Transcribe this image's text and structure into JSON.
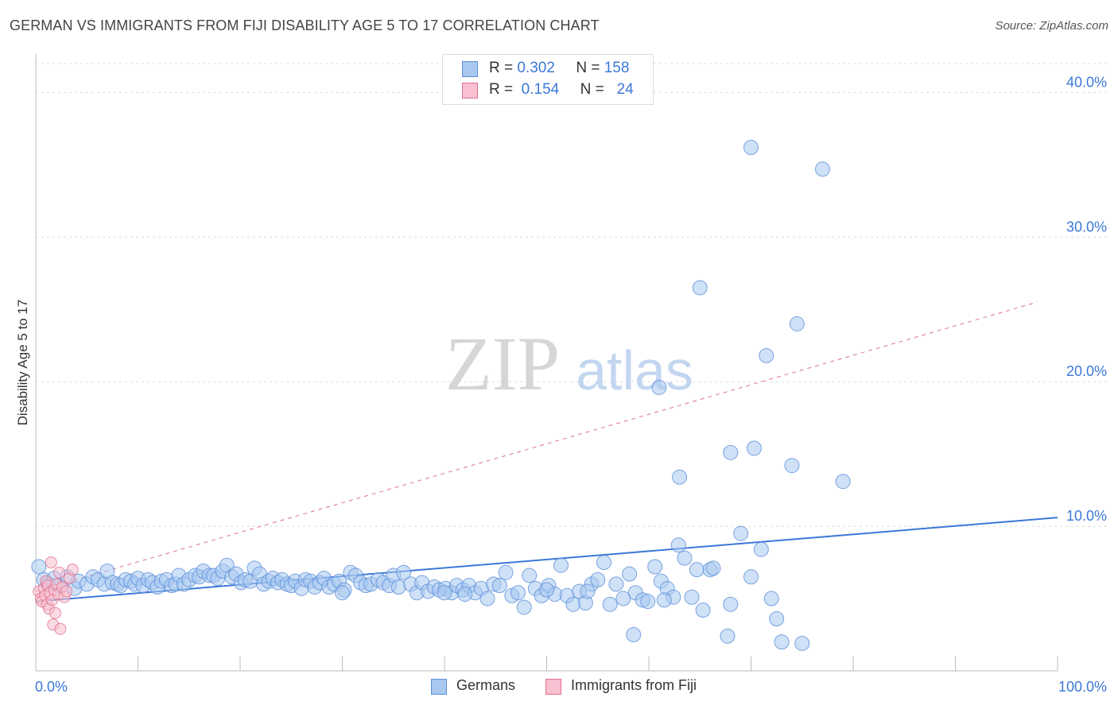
{
  "title": "GERMAN VS IMMIGRANTS FROM FIJI DISABILITY AGE 5 TO 17 CORRELATION CHART",
  "source": "Source: ZipAtlas.com",
  "watermark": {
    "zip": "ZIP",
    "atlas": "atlas"
  },
  "legend_top": [
    {
      "r_label": "R =",
      "r_value": "0.302",
      "n_label": "N =",
      "n_value": "158",
      "color": "#a8c8f0",
      "border": "#5b8fd9"
    },
    {
      "r_label": "R =",
      "r_value": "0.154",
      "n_label": "N =",
      "n_value": "24",
      "color": "#f8c0d0",
      "border": "#e0708f"
    }
  ],
  "legend_bottom": [
    {
      "label": "Germans",
      "color": "#a8c8f0",
      "border": "#5b8fd9"
    },
    {
      "label": "Immigrants from Fiji",
      "color": "#f8c0d0",
      "border": "#e0708f"
    }
  ],
  "chart_data": {
    "type": "scatter",
    "xlabel": "",
    "ylabel": "Disability Age 5 to 17",
    "xlim": [
      0,
      100
    ],
    "ylim": [
      0,
      42
    ],
    "x_tick_labels": [
      {
        "value": 0,
        "label": "0.0%"
      },
      {
        "value": 100,
        "label": "100.0%"
      }
    ],
    "y_tick_labels": [
      {
        "value": 10,
        "label": "10.0%"
      },
      {
        "value": 20,
        "label": "20.0%"
      },
      {
        "value": 30,
        "label": "30.0%"
      },
      {
        "value": 40,
        "label": "40.0%"
      }
    ],
    "grid": true,
    "series": [
      {
        "name": "Germans",
        "color": "#a8c8f0",
        "border": "#5b8fd9",
        "trend": {
          "x": [
            0,
            100
          ],
          "y": [
            4.8,
            10.6
          ],
          "style": "solid",
          "color": "#3b78d8"
        },
        "points": [
          [
            0.3,
            7.2
          ],
          [
            0.8,
            6.3
          ],
          [
            1.2,
            6.0
          ],
          [
            1.8,
            6.4
          ],
          [
            2.3,
            5.9
          ],
          [
            3.1,
            6.5
          ],
          [
            3.8,
            5.7
          ],
          [
            4.2,
            6.2
          ],
          [
            5.0,
            6.0
          ],
          [
            5.6,
            6.5
          ],
          [
            6.1,
            6.3
          ],
          [
            6.7,
            6.0
          ],
          [
            7.0,
            6.9
          ],
          [
            7.5,
            6.1
          ],
          [
            8.0,
            6.0
          ],
          [
            8.3,
            5.9
          ],
          [
            8.8,
            6.3
          ],
          [
            9.3,
            6.2
          ],
          [
            9.7,
            6.0
          ],
          [
            10.0,
            6.4
          ],
          [
            10.5,
            5.9
          ],
          [
            11.0,
            6.3
          ],
          [
            11.4,
            6.1
          ],
          [
            11.9,
            5.8
          ],
          [
            12.3,
            6.2
          ],
          [
            12.8,
            6.3
          ],
          [
            13.3,
            5.9
          ],
          [
            13.7,
            6.0
          ],
          [
            14.0,
            6.6
          ],
          [
            14.5,
            6.0
          ],
          [
            15.0,
            6.3
          ],
          [
            15.6,
            6.6
          ],
          [
            16.0,
            6.5
          ],
          [
            16.4,
            6.9
          ],
          [
            17.0,
            6.6
          ],
          [
            17.4,
            6.6
          ],
          [
            17.8,
            6.4
          ],
          [
            18.3,
            6.9
          ],
          [
            18.7,
            7.3
          ],
          [
            19.2,
            6.5
          ],
          [
            19.6,
            6.7
          ],
          [
            20.1,
            6.1
          ],
          [
            20.5,
            6.3
          ],
          [
            21.0,
            6.2
          ],
          [
            21.4,
            7.1
          ],
          [
            21.9,
            6.7
          ],
          [
            22.3,
            6.0
          ],
          [
            22.8,
            6.2
          ],
          [
            23.2,
            6.4
          ],
          [
            23.7,
            6.1
          ],
          [
            24.1,
            6.3
          ],
          [
            24.6,
            6.0
          ],
          [
            25.0,
            5.9
          ],
          [
            25.4,
            6.2
          ],
          [
            26.0,
            5.7
          ],
          [
            26.4,
            6.3
          ],
          [
            26.9,
            6.2
          ],
          [
            27.3,
            5.8
          ],
          [
            27.8,
            6.1
          ],
          [
            28.2,
            6.4
          ],
          [
            28.7,
            5.8
          ],
          [
            29.2,
            6.0
          ],
          [
            29.7,
            6.2
          ],
          [
            30.2,
            5.6
          ],
          [
            30.8,
            6.8
          ],
          [
            31.3,
            6.6
          ],
          [
            31.8,
            6.1
          ],
          [
            32.3,
            5.9
          ],
          [
            32.8,
            6.0
          ],
          [
            33.5,
            6.3
          ],
          [
            34.0,
            6.1
          ],
          [
            34.6,
            5.9
          ],
          [
            35.0,
            6.6
          ],
          [
            35.5,
            5.8
          ],
          [
            36.0,
            6.8
          ],
          [
            36.7,
            6.0
          ],
          [
            37.3,
            5.4
          ],
          [
            37.8,
            6.1
          ],
          [
            38.4,
            5.5
          ],
          [
            39.0,
            5.8
          ],
          [
            39.5,
            5.6
          ],
          [
            40.1,
            5.7
          ],
          [
            40.7,
            5.4
          ],
          [
            41.2,
            5.9
          ],
          [
            41.8,
            5.6
          ],
          [
            42.4,
            5.9
          ],
          [
            43.0,
            5.4
          ],
          [
            43.6,
            5.7
          ],
          [
            44.2,
            5.0
          ],
          [
            44.8,
            6.0
          ],
          [
            45.4,
            5.9
          ],
          [
            46.0,
            6.8
          ],
          [
            46.6,
            5.2
          ],
          [
            47.2,
            5.4
          ],
          [
            47.8,
            4.4
          ],
          [
            48.3,
            6.6
          ],
          [
            48.9,
            5.7
          ],
          [
            49.5,
            5.2
          ],
          [
            50.2,
            5.9
          ],
          [
            50.8,
            5.3
          ],
          [
            51.4,
            7.3
          ],
          [
            52.0,
            5.2
          ],
          [
            52.6,
            4.6
          ],
          [
            53.2,
            5.5
          ],
          [
            53.8,
            4.7
          ],
          [
            54.4,
            6.0
          ],
          [
            55.0,
            6.3
          ],
          [
            55.6,
            7.5
          ],
          [
            56.2,
            4.6
          ],
          [
            56.8,
            6.0
          ],
          [
            57.5,
            5.0
          ],
          [
            58.1,
            6.7
          ],
          [
            58.7,
            5.4
          ],
          [
            59.4,
            4.9
          ],
          [
            59.9,
            4.8
          ],
          [
            60.6,
            7.2
          ],
          [
            61.2,
            6.2
          ],
          [
            61.8,
            5.7
          ],
          [
            62.4,
            5.1
          ],
          [
            62.9,
            8.7
          ],
          [
            63.5,
            7.8
          ],
          [
            64.2,
            5.1
          ],
          [
            64.7,
            7.0
          ],
          [
            65.3,
            4.2
          ],
          [
            66.0,
            7.0
          ],
          [
            66.3,
            7.1
          ],
          [
            68.0,
            4.6
          ],
          [
            69.0,
            9.5
          ],
          [
            70.0,
            6.5
          ],
          [
            71.0,
            8.4
          ],
          [
            72.0,
            5.0
          ],
          [
            72.5,
            3.6
          ],
          [
            73.0,
            2.0
          ],
          [
            75.0,
            1.9
          ],
          [
            58.5,
            2.5
          ],
          [
            61.5,
            4.9
          ],
          [
            63.0,
            13.4
          ],
          [
            68.0,
            15.1
          ],
          [
            70.3,
            15.4
          ],
          [
            74.0,
            14.2
          ],
          [
            79.0,
            13.1
          ],
          [
            65.0,
            26.5
          ],
          [
            74.5,
            24.0
          ],
          [
            71.5,
            21.8
          ],
          [
            61.0,
            19.6
          ],
          [
            70.0,
            36.2
          ],
          [
            77.0,
            34.7
          ],
          [
            67.7,
            2.4
          ],
          [
            30.0,
            5.4
          ],
          [
            40.0,
            5.4
          ],
          [
            42.0,
            5.3
          ],
          [
            50.0,
            5.6
          ],
          [
            54.0,
            5.5
          ]
        ]
      },
      {
        "name": "Immigrants from Fiji",
        "color": "#f8c0d0",
        "border": "#e0708f",
        "trend": {
          "x": [
            0,
            98
          ],
          "y": [
            5.5,
            25.5
          ],
          "style": "dashed",
          "color": "#e07090"
        },
        "points": [
          [
            0.3,
            5.5
          ],
          [
            0.5,
            5.0
          ],
          [
            0.6,
            4.8
          ],
          [
            0.8,
            5.7
          ],
          [
            0.9,
            5.2
          ],
          [
            1.0,
            6.2
          ],
          [
            1.1,
            4.6
          ],
          [
            1.2,
            5.9
          ],
          [
            1.3,
            4.3
          ],
          [
            1.4,
            5.4
          ],
          [
            1.5,
            7.5
          ],
          [
            1.6,
            4.9
          ],
          [
            1.7,
            3.2
          ],
          [
            1.8,
            5.6
          ],
          [
            1.9,
            4.0
          ],
          [
            2.0,
            6.0
          ],
          [
            2.2,
            5.3
          ],
          [
            2.3,
            6.8
          ],
          [
            2.4,
            2.9
          ],
          [
            2.6,
            5.8
          ],
          [
            2.8,
            5.1
          ],
          [
            3.0,
            5.5
          ],
          [
            3.3,
            6.4
          ],
          [
            3.6,
            7.0
          ]
        ]
      }
    ]
  }
}
